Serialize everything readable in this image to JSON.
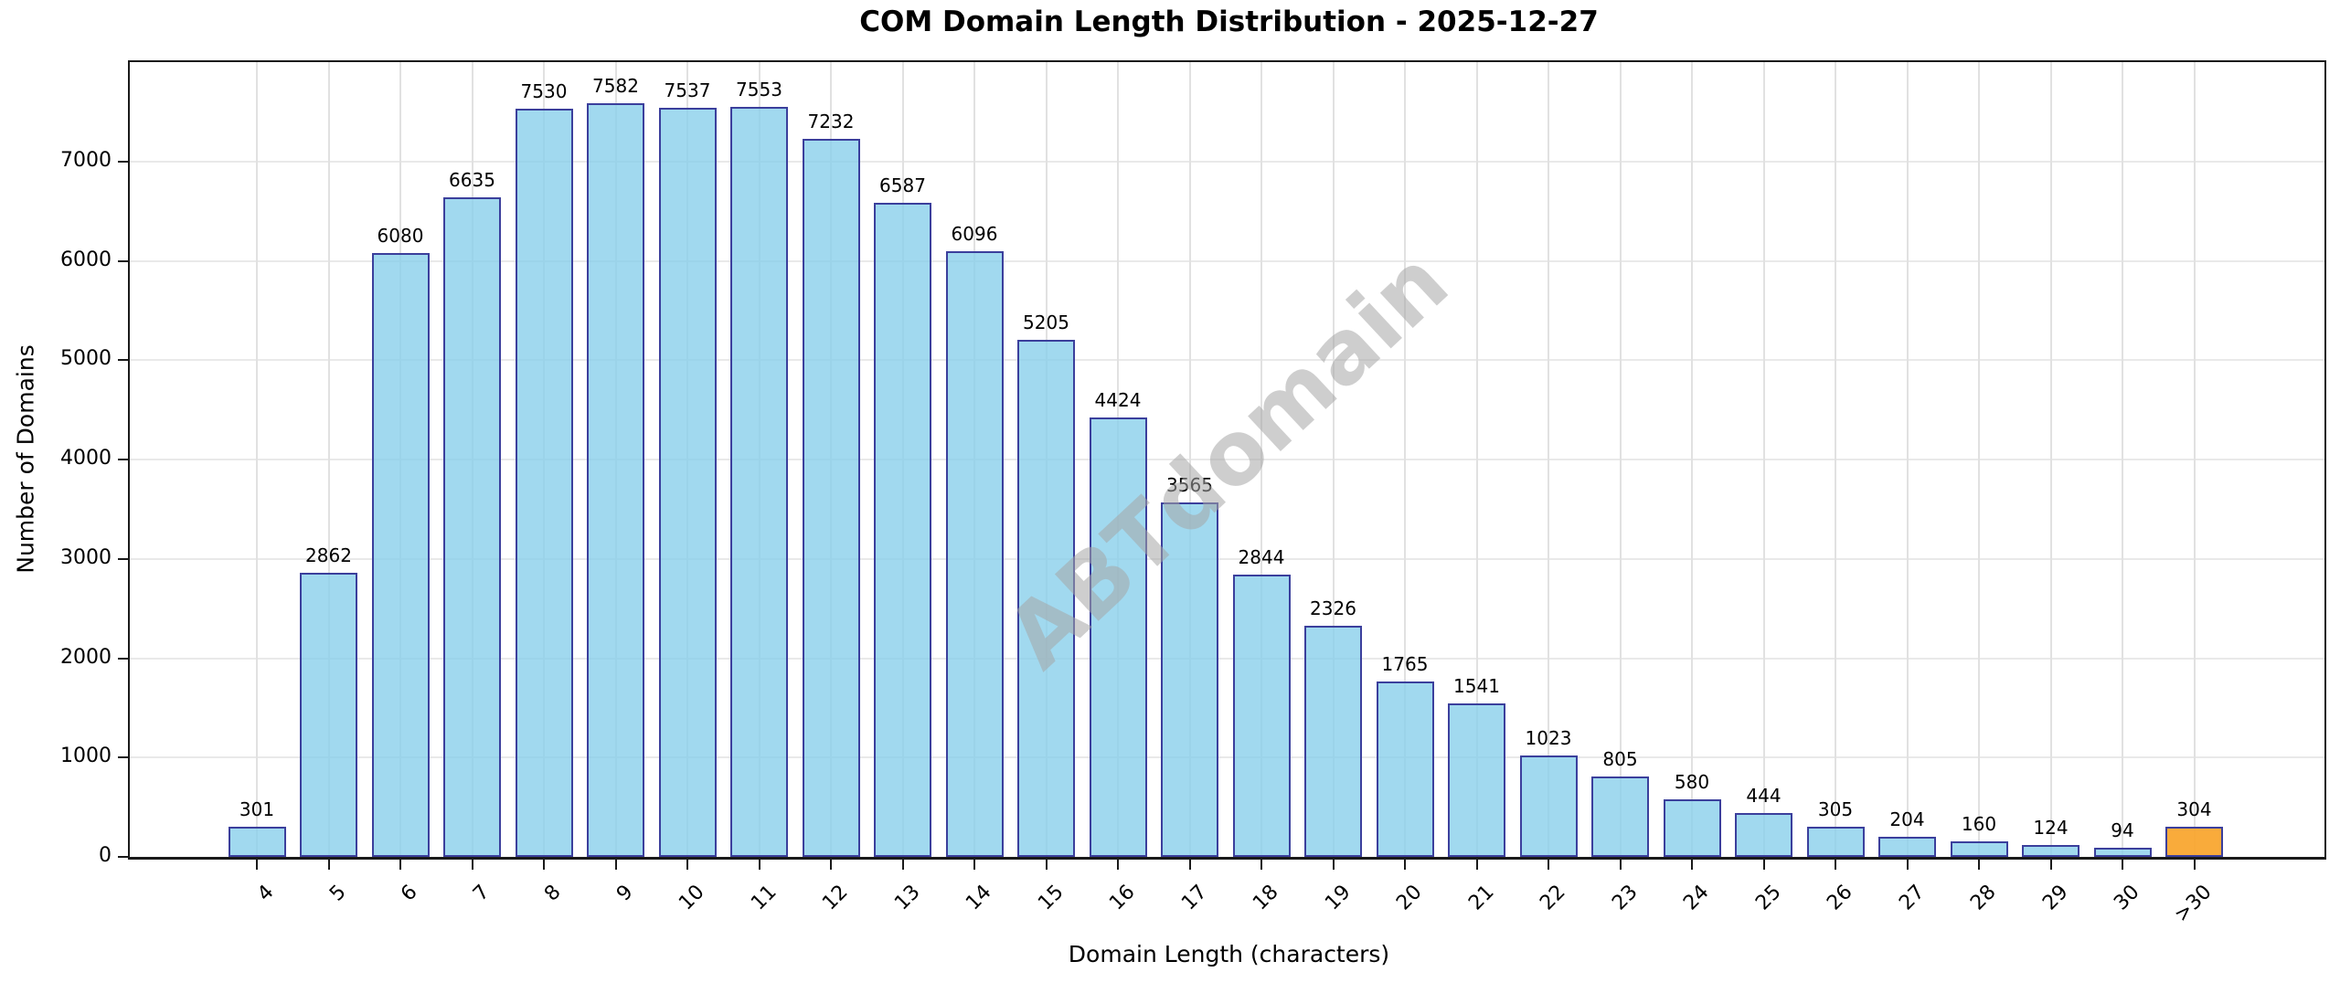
{
  "title": "COM Domain Length Distribution - 2025-12-27",
  "watermark_text": "ABTdomain",
  "chart_data": {
    "type": "bar",
    "title": "COM Domain Length Distribution - 2025-12-27",
    "xlabel": "Domain Length (characters)",
    "ylabel": "Number of Domains",
    "categories": [
      "4",
      "5",
      "6",
      "7",
      "8",
      "9",
      "10",
      "11",
      "12",
      "13",
      "14",
      "15",
      "16",
      "17",
      "18",
      "19",
      "20",
      "21",
      "22",
      "23",
      "24",
      "25",
      "26",
      "27",
      "28",
      "29",
      "30",
      ">30"
    ],
    "values": [
      301,
      2862,
      6080,
      6635,
      7530,
      7582,
      7537,
      7553,
      7232,
      6587,
      6096,
      5205,
      4424,
      3565,
      2844,
      2326,
      1765,
      1541,
      1023,
      805,
      580,
      444,
      305,
      204,
      160,
      124,
      94,
      304
    ],
    "bar_labels": [
      "301",
      "2862",
      "6080",
      "6635",
      "7530",
      "7582",
      "7537",
      "7553",
      "7232",
      "6587",
      "6096",
      "5205",
      "4424",
      "3565",
      "2844",
      "2326",
      "1765",
      "1541",
      "1023",
      "805",
      "580",
      "444",
      "305",
      "204",
      "160",
      "124",
      "94",
      "304"
    ],
    "ylim": [
      0,
      8000
    ],
    "yticks": [
      0,
      1000,
      2000,
      3000,
      4000,
      5000,
      6000,
      7000
    ],
    "grid": true,
    "legend": "none",
    "xtick_rotation_deg": 45,
    "bar_fill_color": "rgba(135,206,235,0.78)",
    "bar_edge_color": "#3b3f9c",
    "highlight_category": ">30",
    "highlight_fill_color": "rgba(248,164,42,0.92)",
    "highlight_edge_color": "#3b3f9c",
    "watermark": "ABTdomain",
    "watermark_color": "#a5a5a5",
    "background_color": "#ffffff",
    "gridline_color": "#e5e5e5"
  }
}
